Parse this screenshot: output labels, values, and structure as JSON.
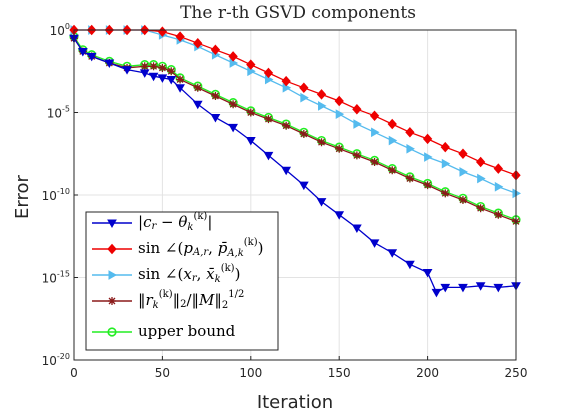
{
  "chart_data": {
    "type": "line",
    "title": "The r-th GSVD components",
    "xlabel": "Iteration",
    "ylabel": "Error",
    "xlim": [
      0,
      250
    ],
    "ylim_log10": [
      -20,
      0
    ],
    "yscale": "log",
    "x_ticks": [
      "0",
      "50",
      "100",
      "150",
      "200",
      "250"
    ],
    "y_ticks": [
      {
        "base": "10",
        "exp": "0"
      },
      {
        "base": "10",
        "exp": "-5"
      },
      {
        "base": "10",
        "exp": "-10"
      },
      {
        "base": "10",
        "exp": "-15"
      },
      {
        "base": "10",
        "exp": "-20"
      }
    ],
    "grid": true,
    "legend_position": "bottom-left",
    "series": [
      {
        "name": "|c_r − θ_k^(k)|",
        "color": "#0000cc",
        "marker": "triangle-down",
        "x": [
          0,
          5,
          10,
          20,
          30,
          40,
          45,
          50,
          55,
          60,
          70,
          80,
          90,
          100,
          110,
          120,
          130,
          140,
          150,
          160,
          170,
          180,
          190,
          200,
          205,
          210,
          220,
          230,
          240,
          250
        ],
        "log10_y": [
          -0.5,
          -1.3,
          -1.6,
          -2.0,
          -2.4,
          -2.6,
          -2.8,
          -2.9,
          -3.0,
          -3.5,
          -4.5,
          -5.3,
          -5.9,
          -6.7,
          -7.6,
          -8.5,
          -9.4,
          -10.4,
          -11.2,
          -12.0,
          -12.9,
          -13.5,
          -14.2,
          -14.7,
          -15.9,
          -15.6,
          -15.6,
          -15.5,
          -15.6,
          -15.5
        ]
      },
      {
        "name": "sin ∠(p_A,r, p̄_A,k^(k))",
        "color": "#ee0000",
        "marker": "diamond",
        "x": [
          0,
          10,
          20,
          30,
          40,
          50,
          60,
          70,
          80,
          90,
          100,
          110,
          120,
          130,
          140,
          150,
          160,
          170,
          180,
          190,
          200,
          210,
          220,
          230,
          240,
          250
        ],
        "log10_y": [
          0,
          0,
          0,
          0,
          0,
          -0.1,
          -0.4,
          -0.8,
          -1.2,
          -1.6,
          -2.1,
          -2.6,
          -3.1,
          -3.5,
          -3.9,
          -4.3,
          -4.8,
          -5.2,
          -5.7,
          -6.2,
          -6.6,
          -7.1,
          -7.5,
          -8.0,
          -8.4,
          -8.8
        ]
      },
      {
        "name": "sin ∠(x_r, x̄_k^(k))",
        "color": "#55bbee",
        "marker": "triangle-right",
        "x": [
          0,
          10,
          20,
          30,
          40,
          50,
          60,
          70,
          80,
          90,
          100,
          110,
          120,
          130,
          140,
          150,
          160,
          170,
          180,
          190,
          200,
          210,
          220,
          230,
          240,
          250
        ],
        "log10_y": [
          0,
          0,
          0,
          0,
          0,
          -0.3,
          -0.6,
          -1.0,
          -1.5,
          -2.0,
          -2.5,
          -3.0,
          -3.5,
          -4.1,
          -4.6,
          -5.1,
          -5.7,
          -6.2,
          -6.7,
          -7.2,
          -7.7,
          -8.1,
          -8.6,
          -9.0,
          -9.5,
          -9.9
        ]
      },
      {
        "name": "‖r_k^(k)‖₂/‖M‖₂^(1/2)",
        "color": "#8b1a1a",
        "marker": "asterisk",
        "x": [
          0,
          5,
          10,
          20,
          30,
          40,
          45,
          50,
          55,
          60,
          70,
          80,
          90,
          100,
          110,
          120,
          130,
          140,
          150,
          160,
          170,
          180,
          190,
          200,
          210,
          220,
          230,
          240,
          250
        ],
        "log10_y": [
          -0.5,
          -1.3,
          -1.6,
          -2.0,
          -2.3,
          -2.2,
          -2.2,
          -2.3,
          -2.5,
          -3.0,
          -3.5,
          -4.0,
          -4.5,
          -5.0,
          -5.4,
          -5.8,
          -6.3,
          -6.8,
          -7.2,
          -7.6,
          -8.0,
          -8.5,
          -9.0,
          -9.4,
          -9.9,
          -10.3,
          -10.8,
          -11.2,
          -11.6
        ]
      },
      {
        "name": "upper bound",
        "color": "#22ee22",
        "marker": "circle",
        "x": [
          0,
          5,
          10,
          20,
          30,
          40,
          45,
          50,
          55,
          60,
          70,
          80,
          90,
          100,
          110,
          120,
          130,
          140,
          150,
          160,
          170,
          180,
          190,
          200,
          210,
          220,
          230,
          240,
          250
        ],
        "log10_y": [
          -0.4,
          -1.2,
          -1.5,
          -1.9,
          -2.2,
          -2.1,
          -2.1,
          -2.2,
          -2.4,
          -2.9,
          -3.4,
          -3.9,
          -4.4,
          -4.9,
          -5.3,
          -5.7,
          -6.2,
          -6.7,
          -7.1,
          -7.5,
          -7.9,
          -8.4,
          -8.9,
          -9.3,
          -9.8,
          -10.2,
          -10.7,
          -11.1,
          -11.5
        ]
      }
    ]
  }
}
